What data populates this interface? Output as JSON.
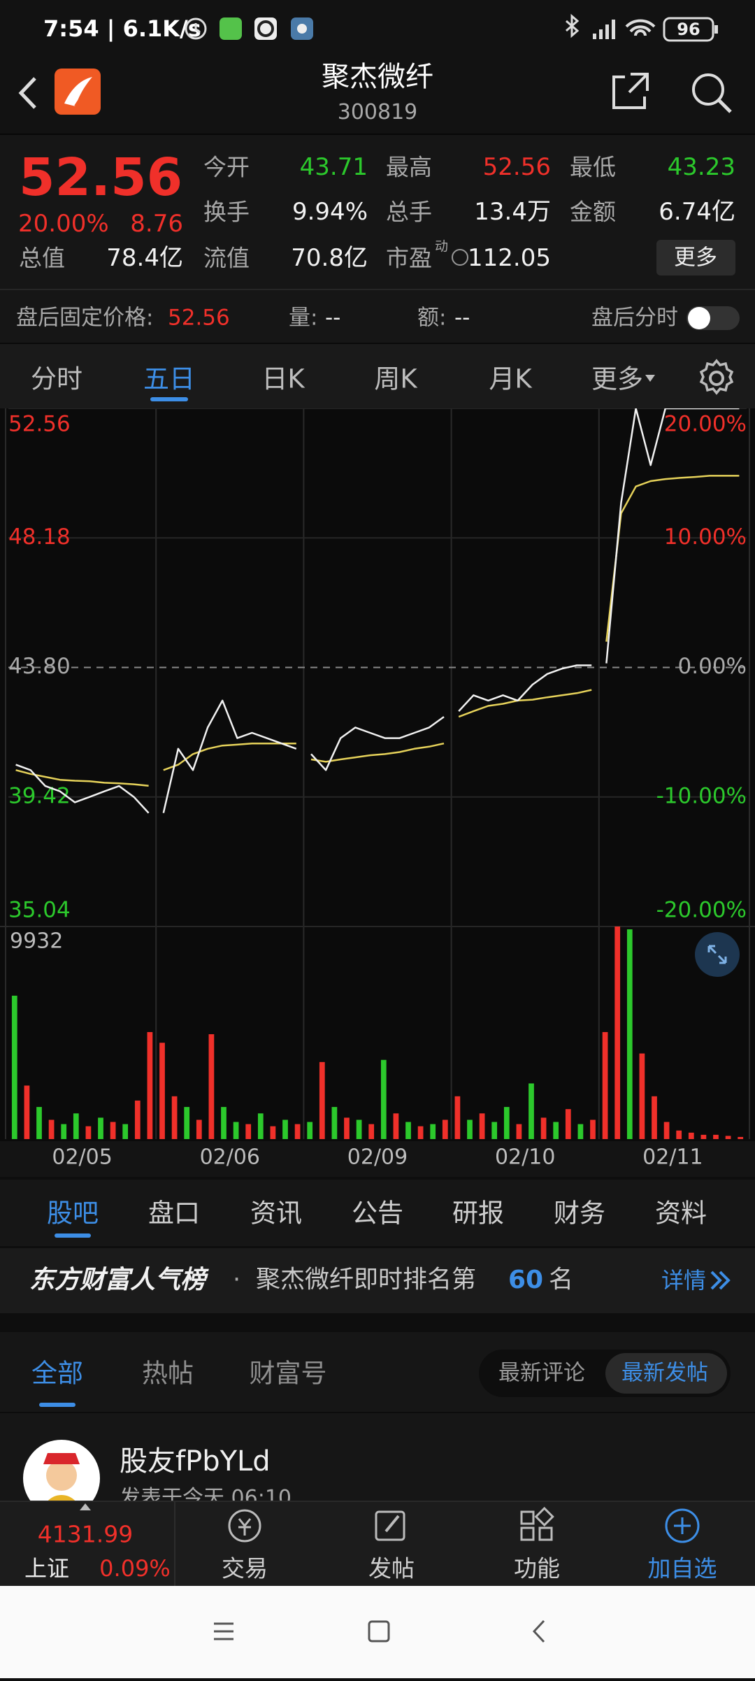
{
  "status_bar": {
    "time": "7:54 | 6.1K/s",
    "battery": "96"
  },
  "header": {
    "title": "聚杰微纤",
    "code": "300819"
  },
  "quote": {
    "price": "52.56",
    "change_pct": "20.00%",
    "change": "8.76",
    "more": "更多",
    "fields": [
      {
        "label": "今开",
        "value": "43.71",
        "color": "#2cc92c"
      },
      {
        "label": "最高",
        "value": "52.56",
        "color": "#f0302a"
      },
      {
        "label": "最低",
        "value": "43.23",
        "color": "#2cc92c"
      },
      {
        "label": "换手",
        "value": "9.94%"
      },
      {
        "label": "总手",
        "value": "13.4万"
      },
      {
        "label": "金额",
        "value": "6.74亿"
      },
      {
        "label": "总值",
        "value": "78.4亿"
      },
      {
        "label": "流值",
        "value": "70.8亿"
      },
      {
        "label": "市盈",
        "sup": "动",
        "value": "112.05"
      }
    ]
  },
  "after_hours": {
    "label": "盘后固定价格:",
    "price": "52.56",
    "volume_label": "量:",
    "volume": "--",
    "amount_label": "额:",
    "amount": "--",
    "toggle_label": "盘后分时"
  },
  "chart_tabs": {
    "items": [
      "分时",
      "五日",
      "日K",
      "周K",
      "月K",
      "更多"
    ],
    "active": 1
  },
  "chart_data": {
    "type": "line",
    "ylim": [
      35.04,
      52.56
    ],
    "yticks": [
      35.04,
      39.42,
      {
        "value": 43.8,
        "label": "43.80"
      },
      48.18,
      52.56
    ],
    "y2lim": [
      -20,
      20
    ],
    "y2ticks": [
      {
        "value": -20,
        "label": "-20.00%"
      },
      {
        "value": -10,
        "label": "-10.00%"
      },
      {
        "value": 0,
        "label": "0.00%"
      },
      {
        "value": 10,
        "label": "10.00%"
      },
      {
        "value": 20,
        "label": "20.00%"
      }
    ],
    "volume_ylim": [
      0,
      9932
    ],
    "volume_yticks": [
      9932
    ],
    "price_color": "#f2f2f2",
    "avg_color": "#e6d25a",
    "days": [
      {
        "date": "02/05",
        "price": [
          40.51,
          40.33,
          39.79,
          39.61,
          39.24,
          39.42,
          39.61,
          39.79,
          39.42,
          38.88
        ],
        "avg": [
          40.33,
          40.2,
          40.1,
          40.0,
          39.97,
          39.95,
          39.9,
          39.88,
          39.85,
          39.8
        ],
        "volume": [
          6700,
          2500,
          1500,
          900,
          700,
          1200,
          600,
          1000,
          800,
          700,
          1800,
          5000
        ],
        "volume_colors": [
          "#2cc92c",
          "#f0302a",
          "#2cc92c",
          "#f0302a",
          "#2cc92c",
          "#2cc92c",
          "#f0302a",
          "#2cc92c",
          "#f0302a",
          "#2cc92c",
          "#f0302a",
          "#f0302a"
        ]
      },
      {
        "date": "02/06",
        "price": [
          38.88,
          41.05,
          40.33,
          41.77,
          42.68,
          41.41,
          41.59,
          41.41,
          41.23,
          41.05
        ],
        "avg": [
          40.33,
          40.51,
          40.87,
          41.05,
          41.16,
          41.19,
          41.23,
          41.23,
          41.23,
          41.23
        ],
        "volume": [
          4500,
          2000,
          1500,
          900,
          4900,
          1500,
          800,
          700,
          1200,
          600,
          900,
          700
        ],
        "volume_colors": [
          "#f0302a",
          "#f0302a",
          "#2cc92c",
          "#f0302a",
          "#f0302a",
          "#2cc92c",
          "#2cc92c",
          "#f0302a",
          "#2cc92c",
          "#f0302a",
          "#2cc92c",
          "#f0302a"
        ]
      },
      {
        "date": "02/09",
        "price": [
          40.87,
          40.33,
          41.41,
          41.77,
          41.59,
          41.41,
          41.41,
          41.59,
          41.77,
          42.13
        ],
        "avg": [
          40.69,
          40.61,
          40.69,
          40.76,
          40.83,
          40.87,
          40.94,
          41.05,
          41.12,
          41.23
        ],
        "volume": [
          800,
          3600,
          1500,
          1000,
          900,
          700,
          3700,
          1200,
          800,
          600,
          700,
          900
        ],
        "volume_colors": [
          "#2cc92c",
          "#f0302a",
          "#2cc92c",
          "#f0302a",
          "#2cc92c",
          "#f0302a",
          "#2cc92c",
          "#f0302a",
          "#2cc92c",
          "#f0302a",
          "#2cc92c",
          "#f0302a"
        ]
      },
      {
        "date": "02/10",
        "price": [
          42.32,
          42.86,
          42.68,
          42.86,
          42.68,
          43.22,
          43.58,
          43.76,
          43.87,
          43.87
        ],
        "avg": [
          42.13,
          42.32,
          42.5,
          42.57,
          42.68,
          42.71,
          42.79,
          42.86,
          42.93,
          43.04
        ],
        "volume": [
          2000,
          900,
          1200,
          800,
          1500,
          700,
          2600,
          1000,
          800,
          1400,
          700,
          900
        ],
        "volume_colors": [
          "#f0302a",
          "#2cc92c",
          "#f0302a",
          "#2cc92c",
          "#2cc92c",
          "#f0302a",
          "#2cc92c",
          "#f0302a",
          "#2cc92c",
          "#f0302a",
          "#2cc92c",
          "#f0302a"
        ]
      },
      {
        "date": "02/11",
        "price": [
          43.94,
          49.37,
          52.56,
          50.64,
          52.56,
          52.56,
          52.56,
          52.56,
          52.56,
          52.56
        ],
        "avg": [
          44.67,
          49.01,
          49.92,
          50.1,
          50.17,
          50.21,
          50.24,
          50.28,
          50.28,
          50.28
        ],
        "volume": [
          5000,
          9932,
          9800,
          4000,
          2000,
          800,
          400,
          300,
          200,
          200,
          150,
          100
        ],
        "volume_colors": [
          "#f0302a",
          "#f0302a",
          "#2cc92c",
          "#f0302a",
          "#f0302a",
          "#f0302a",
          "#f0302a",
          "#f0302a",
          "#f0302a",
          "#f0302a",
          "#f0302a",
          "#f0302a"
        ]
      }
    ]
  },
  "stock_tabs": {
    "items": [
      "股吧",
      "盘口",
      "资讯",
      "公告",
      "研报",
      "财务",
      "资料"
    ],
    "active": 0
  },
  "ranking": {
    "brand": "东方财富人气榜",
    "separator": "·",
    "text": "聚杰微纤即时排名第",
    "rank": "60",
    "suffix": "名",
    "detail": "详情"
  },
  "feed_tabs": {
    "items": [
      "全部",
      "热帖",
      "财富号"
    ],
    "active": 0
  },
  "sort_toggle": {
    "items": [
      "最新评论",
      "最新发帖"
    ],
    "active": 1
  },
  "post": {
    "user": "股友fPbYLd",
    "time": "发表于今天 06:10"
  },
  "bottom_nav": {
    "index_value": "4131.99",
    "index_name": "上证",
    "index_change": "0.09%",
    "items": [
      "交易",
      "发帖",
      "功能",
      "加自选"
    ]
  }
}
